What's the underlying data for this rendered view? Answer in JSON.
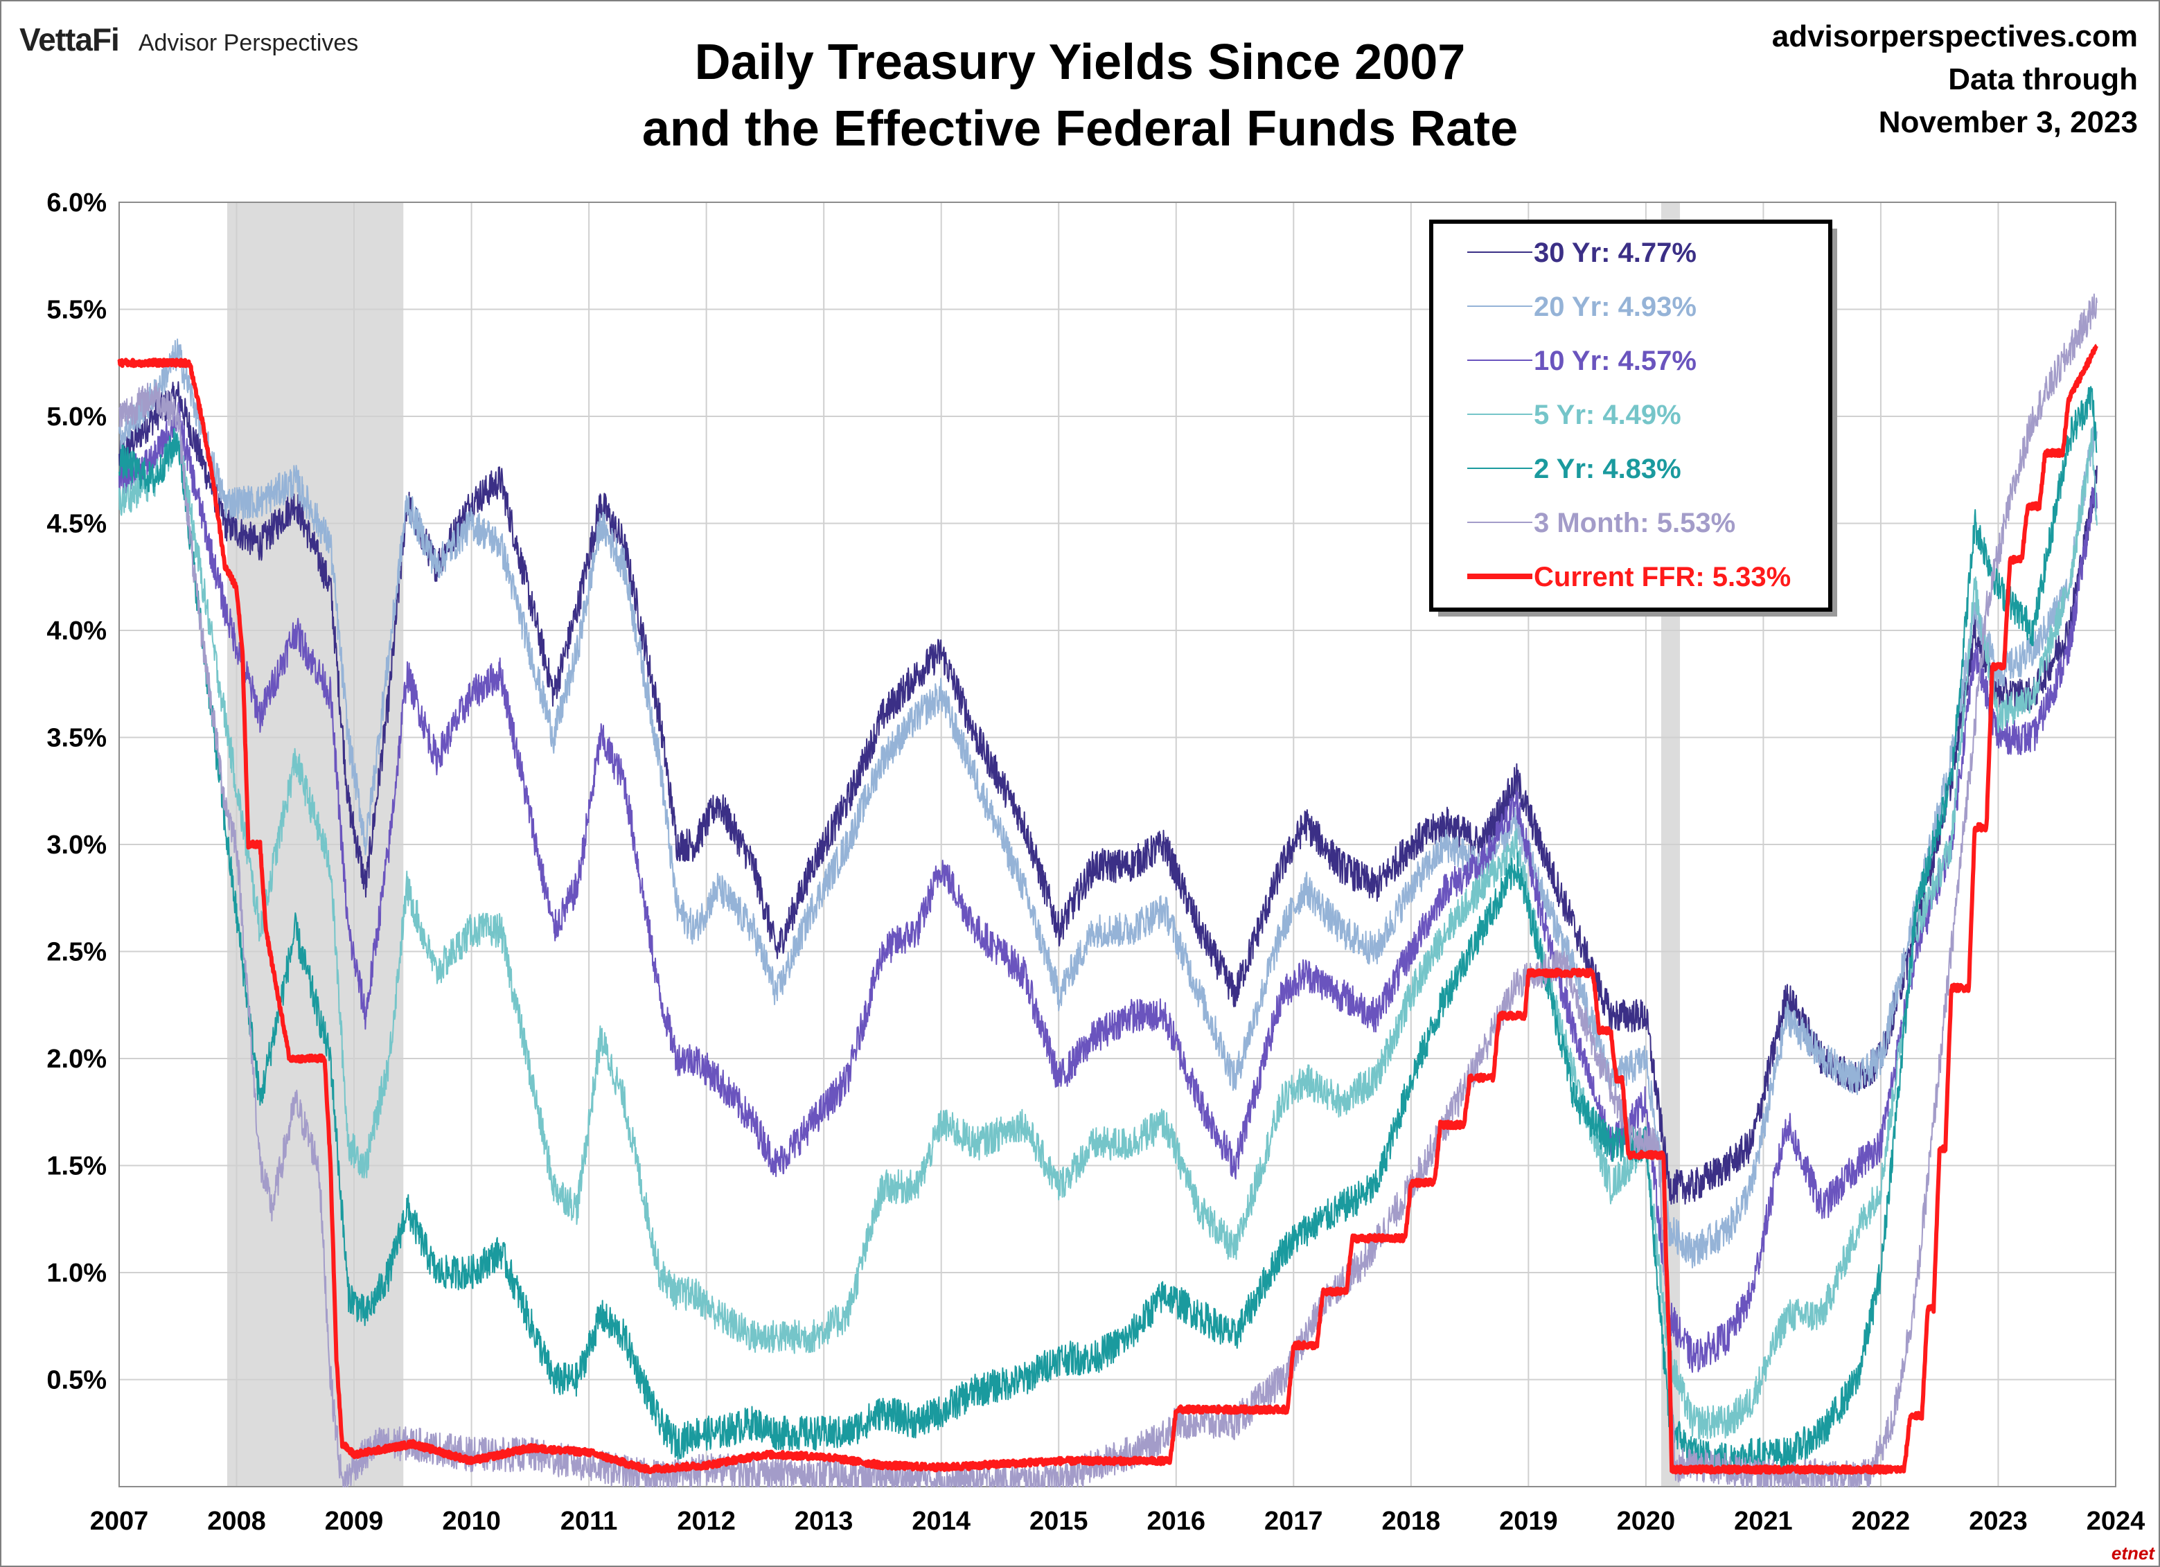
{
  "header": {
    "brand": "VettaFi",
    "sub_brand": "Advisor Perspectives",
    "title_line1": "Daily Treasury Yields Since 2007",
    "title_line2": "and the Effective Federal Funds Rate",
    "source_url": "advisorperspectives.com",
    "data_through_label": "Data through",
    "data_through_date": "November 3, 2023"
  },
  "watermark": "etnet",
  "chart_data": {
    "type": "line",
    "title": "Daily Treasury Yields Since 2007 and the Effective Federal Funds Rate",
    "xlabel": "",
    "ylabel": "",
    "xlim": [
      2007,
      2024
    ],
    "ylim": [
      0,
      6
    ],
    "x_ticks": [
      "2007",
      "2008",
      "2009",
      "2010",
      "2011",
      "2012",
      "2013",
      "2014",
      "2015",
      "2016",
      "2017",
      "2018",
      "2019",
      "2020",
      "2021",
      "2022",
      "2023",
      "2024"
    ],
    "y_ticks": [
      "0.5%",
      "1.0%",
      "1.5%",
      "2.0%",
      "2.5%",
      "3.0%",
      "3.5%",
      "4.0%",
      "4.5%",
      "5.0%",
      "5.5%",
      "6.0%"
    ],
    "grid": true,
    "legend_position": "top-right",
    "recessions": [
      [
        2007.92,
        2009.42
      ],
      [
        2020.13,
        2020.29
      ]
    ],
    "series": [
      {
        "name": "30 Yr",
        "legend": "30 Yr: 4.77%",
        "color": "#3b2f86",
        "width": 2,
        "x": [
          2007.0,
          2007.3,
          2007.5,
          2007.9,
          2008.2,
          2008.5,
          2008.8,
          2008.95,
          2009.1,
          2009.3,
          2009.45,
          2009.7,
          2010.0,
          2010.25,
          2010.7,
          2010.9,
          2011.1,
          2011.3,
          2011.6,
          2011.75,
          2011.9,
          2012.1,
          2012.4,
          2012.6,
          2012.9,
          2013.2,
          2013.5,
          2013.8,
          2014.0,
          2014.3,
          2014.7,
          2015.0,
          2015.3,
          2015.6,
          2015.9,
          2016.2,
          2016.5,
          2016.9,
          2017.1,
          2017.4,
          2017.7,
          2018.0,
          2018.3,
          2018.6,
          2018.9,
          2019.1,
          2019.4,
          2019.7,
          2020.0,
          2020.2,
          2020.4,
          2020.7,
          2020.9,
          2021.2,
          2021.5,
          2021.8,
          2022.0,
          2022.3,
          2022.6,
          2022.8,
          2023.0,
          2023.3,
          2023.6,
          2023.8,
          2023.84
        ],
        "y": [
          4.8,
          5.0,
          5.1,
          4.5,
          4.4,
          4.6,
          4.2,
          3.2,
          2.8,
          3.7,
          4.6,
          4.3,
          4.6,
          4.7,
          3.7,
          4.1,
          4.6,
          4.4,
          3.6,
          3.0,
          3.0,
          3.2,
          2.9,
          2.5,
          2.9,
          3.2,
          3.6,
          3.8,
          3.9,
          3.5,
          3.1,
          2.6,
          2.9,
          2.9,
          3.0,
          2.6,
          2.3,
          2.9,
          3.1,
          2.9,
          2.8,
          3.0,
          3.1,
          3.0,
          3.3,
          3.0,
          2.6,
          2.2,
          2.2,
          1.4,
          1.4,
          1.5,
          1.6,
          2.3,
          2.0,
          1.9,
          2.0,
          2.6,
          3.3,
          4.0,
          3.7,
          3.7,
          4.0,
          4.6,
          4.77
        ]
      },
      {
        "name": "20 Yr",
        "legend": "20 Yr: 4.93%",
        "color": "#95b3d7",
        "width": 2,
        "x": [
          2007.0,
          2007.3,
          2007.5,
          2007.9,
          2008.2,
          2008.5,
          2008.8,
          2008.95,
          2009.1,
          2009.3,
          2009.45,
          2009.7,
          2010.0,
          2010.25,
          2010.7,
          2010.9,
          2011.1,
          2011.3,
          2011.6,
          2011.75,
          2011.9,
          2012.1,
          2012.4,
          2012.6,
          2012.9,
          2013.2,
          2013.5,
          2013.8,
          2014.0,
          2014.3,
          2014.7,
          2015.0,
          2015.3,
          2015.6,
          2015.9,
          2016.2,
          2016.5,
          2016.9,
          2017.1,
          2017.4,
          2017.7,
          2018.0,
          2018.3,
          2018.6,
          2018.9,
          2019.1,
          2019.4,
          2019.7,
          2020.0,
          2020.2,
          2020.4,
          2020.7,
          2020.9,
          2021.2,
          2021.5,
          2021.8,
          2022.0,
          2022.3,
          2022.6,
          2022.8,
          2023.0,
          2023.3,
          2023.6,
          2023.8,
          2023.84
        ],
        "y": [
          4.9,
          5.1,
          5.3,
          4.6,
          4.6,
          4.7,
          4.4,
          3.5,
          3.0,
          3.9,
          4.6,
          4.3,
          4.5,
          4.4,
          3.5,
          3.9,
          4.5,
          4.3,
          3.4,
          2.7,
          2.6,
          2.8,
          2.6,
          2.3,
          2.7,
          3.0,
          3.4,
          3.6,
          3.7,
          3.3,
          2.8,
          2.3,
          2.6,
          2.6,
          2.7,
          2.3,
          1.9,
          2.6,
          2.8,
          2.6,
          2.5,
          2.8,
          3.0,
          2.9,
          3.1,
          2.8,
          2.4,
          1.9,
          2.0,
          1.2,
          1.1,
          1.2,
          1.4,
          2.2,
          2.0,
          1.9,
          2.0,
          2.7,
          3.4,
          4.1,
          3.8,
          3.9,
          4.2,
          4.9,
          4.93
        ]
      },
      {
        "name": "10 Yr",
        "legend": "10 Yr: 4.57%",
        "color": "#6a54be",
        "width": 2,
        "x": [
          2007.0,
          2007.3,
          2007.5,
          2007.9,
          2008.2,
          2008.5,
          2008.8,
          2008.95,
          2009.1,
          2009.3,
          2009.45,
          2009.7,
          2010.0,
          2010.25,
          2010.7,
          2010.9,
          2011.1,
          2011.3,
          2011.6,
          2011.75,
          2011.9,
          2012.1,
          2012.4,
          2012.6,
          2012.9,
          2013.2,
          2013.5,
          2013.8,
          2014.0,
          2014.3,
          2014.7,
          2015.0,
          2015.3,
          2015.6,
          2015.9,
          2016.2,
          2016.5,
          2016.9,
          2017.1,
          2017.4,
          2017.7,
          2018.0,
          2018.3,
          2018.6,
          2018.9,
          2019.1,
          2019.4,
          2019.7,
          2020.0,
          2020.2,
          2020.4,
          2020.7,
          2020.9,
          2021.2,
          2021.5,
          2021.8,
          2022.0,
          2022.3,
          2022.6,
          2022.8,
          2023.0,
          2023.3,
          2023.6,
          2023.8,
          2023.84
        ],
        "y": [
          4.7,
          4.8,
          5.0,
          4.1,
          3.6,
          4.0,
          3.7,
          2.6,
          2.2,
          3.0,
          3.8,
          3.4,
          3.7,
          3.8,
          2.6,
          2.8,
          3.5,
          3.3,
          2.3,
          2.0,
          2.0,
          1.9,
          1.7,
          1.5,
          1.7,
          1.9,
          2.5,
          2.6,
          2.9,
          2.6,
          2.4,
          1.9,
          2.1,
          2.2,
          2.2,
          1.8,
          1.5,
          2.3,
          2.4,
          2.3,
          2.2,
          2.5,
          2.8,
          2.9,
          3.2,
          2.7,
          2.1,
          1.6,
          1.8,
          0.8,
          0.6,
          0.7,
          0.9,
          1.7,
          1.3,
          1.5,
          1.6,
          2.5,
          3.0,
          3.9,
          3.5,
          3.5,
          3.9,
          4.6,
          4.57
        ]
      },
      {
        "name": "5 Yr",
        "legend": "5 Yr: 4.49%",
        "color": "#75c5c9",
        "width": 2,
        "x": [
          2007.0,
          2007.3,
          2007.5,
          2007.9,
          2008.2,
          2008.5,
          2008.8,
          2008.95,
          2009.1,
          2009.3,
          2009.45,
          2009.7,
          2010.0,
          2010.25,
          2010.7,
          2010.9,
          2011.1,
          2011.3,
          2011.6,
          2011.75,
          2011.9,
          2012.1,
          2012.4,
          2012.6,
          2012.9,
          2013.2,
          2013.5,
          2013.8,
          2014.0,
          2014.3,
          2014.7,
          2015.0,
          2015.3,
          2015.6,
          2015.9,
          2016.2,
          2016.5,
          2016.9,
          2017.1,
          2017.4,
          2017.7,
          2018.0,
          2018.3,
          2018.6,
          2018.9,
          2019.1,
          2019.4,
          2019.7,
          2020.0,
          2020.2,
          2020.4,
          2020.7,
          2020.9,
          2021.2,
          2021.5,
          2021.8,
          2022.0,
          2022.3,
          2022.6,
          2022.8,
          2023.0,
          2023.3,
          2023.6,
          2023.8,
          2023.84
        ],
        "y": [
          4.6,
          4.7,
          4.9,
          3.6,
          2.6,
          3.4,
          2.9,
          1.6,
          1.5,
          2.0,
          2.8,
          2.4,
          2.6,
          2.6,
          1.4,
          1.3,
          2.1,
          1.8,
          1.0,
          0.9,
          0.9,
          0.8,
          0.7,
          0.7,
          0.7,
          0.8,
          1.4,
          1.4,
          1.7,
          1.6,
          1.7,
          1.4,
          1.6,
          1.6,
          1.7,
          1.3,
          1.1,
          1.8,
          1.9,
          1.8,
          1.9,
          2.3,
          2.6,
          2.8,
          3.0,
          2.5,
          1.9,
          1.4,
          1.6,
          0.6,
          0.3,
          0.3,
          0.4,
          0.8,
          0.8,
          1.2,
          1.4,
          2.6,
          3.0,
          4.2,
          3.6,
          3.7,
          4.2,
          4.9,
          4.49
        ]
      },
      {
        "name": "2 Yr",
        "legend": "2 Yr: 4.83%",
        "color": "#1a9a9e",
        "width": 2,
        "x": [
          2007.0,
          2007.3,
          2007.5,
          2007.9,
          2008.2,
          2008.5,
          2008.8,
          2008.95,
          2009.1,
          2009.3,
          2009.45,
          2009.7,
          2010.0,
          2010.25,
          2010.7,
          2010.9,
          2011.1,
          2011.3,
          2011.6,
          2011.75,
          2011.9,
          2012.1,
          2012.4,
          2012.6,
          2012.9,
          2013.2,
          2013.5,
          2013.8,
          2014.0,
          2014.3,
          2014.7,
          2015.0,
          2015.3,
          2015.6,
          2015.9,
          2016.2,
          2016.5,
          2016.9,
          2017.1,
          2017.4,
          2017.7,
          2018.0,
          2018.3,
          2018.6,
          2018.9,
          2019.1,
          2019.4,
          2019.7,
          2020.0,
          2020.2,
          2020.4,
          2020.7,
          2020.9,
          2021.2,
          2021.5,
          2021.8,
          2022.0,
          2022.3,
          2022.6,
          2022.8,
          2023.0,
          2023.3,
          2023.6,
          2023.8,
          2023.84
        ],
        "y": [
          4.8,
          4.7,
          4.9,
          3.1,
          1.8,
          2.6,
          2.0,
          0.9,
          0.8,
          1.0,
          1.3,
          1.0,
          1.0,
          1.1,
          0.5,
          0.5,
          0.8,
          0.7,
          0.3,
          0.2,
          0.25,
          0.25,
          0.3,
          0.25,
          0.25,
          0.25,
          0.35,
          0.3,
          0.35,
          0.45,
          0.5,
          0.6,
          0.6,
          0.7,
          0.9,
          0.8,
          0.7,
          1.1,
          1.2,
          1.3,
          1.4,
          1.9,
          2.3,
          2.6,
          2.9,
          2.5,
          1.8,
          1.6,
          1.6,
          0.3,
          0.15,
          0.13,
          0.15,
          0.15,
          0.25,
          0.5,
          1.0,
          2.7,
          3.3,
          4.5,
          4.2,
          4.0,
          4.9,
          5.1,
          4.83
        ]
      },
      {
        "name": "3 Month",
        "legend": "3 Month: 5.53%",
        "color": "#a39cc9",
        "width": 2,
        "x": [
          2007.0,
          2007.3,
          2007.5,
          2007.65,
          2007.9,
          2008.0,
          2008.2,
          2008.3,
          2008.5,
          2008.7,
          2008.8,
          2008.9,
          2009.0,
          2009.2,
          2009.5,
          2010.0,
          2010.5,
          2011.0,
          2011.5,
          2011.7,
          2012.0,
          2013.0,
          2014.0,
          2015.0,
          2015.8,
          2016.0,
          2016.5,
          2016.9,
          2017.3,
          2017.6,
          2018.0,
          2018.4,
          2018.9,
          2019.3,
          2019.6,
          2019.9,
          2020.1,
          2020.25,
          2020.4,
          2021.0,
          2021.9,
          2022.1,
          2022.3,
          2022.6,
          2022.9,
          2023.1,
          2023.3,
          2023.6,
          2023.84
        ],
        "y": [
          5.0,
          5.1,
          5.0,
          4.2,
          3.2,
          3.0,
          1.5,
          1.3,
          1.8,
          1.5,
          0.5,
          0.0,
          0.1,
          0.2,
          0.2,
          0.15,
          0.15,
          0.1,
          0.05,
          0.05,
          0.08,
          0.05,
          0.03,
          0.03,
          0.2,
          0.3,
          0.3,
          0.5,
          0.9,
          1.05,
          1.4,
          1.8,
          2.35,
          2.45,
          2.0,
          1.6,
          1.6,
          0.1,
          0.1,
          0.05,
          0.05,
          0.3,
          0.9,
          2.5,
          4.1,
          4.6,
          5.0,
          5.3,
          5.53
        ]
      }
    ],
    "ffr": {
      "name": "Current FFR",
      "legend": "Current FFR: 5.33%",
      "color": "#ff1a1a",
      "width": 6,
      "x": [
        2007.0,
        2007.6,
        2007.7,
        2007.8,
        2007.9,
        2008.0,
        2008.05,
        2008.1,
        2008.2,
        2008.25,
        2008.35,
        2008.45,
        2008.75,
        2008.8,
        2008.85,
        2008.9,
        2009.0,
        2009.5,
        2010.0,
        2010.5,
        2011.0,
        2011.5,
        2012.0,
        2012.5,
        2013.0,
        2013.5,
        2014.0,
        2015.0,
        2015.95,
        2016.0,
        2016.95,
        2017.0,
        2017.2,
        2017.25,
        2017.45,
        2017.5,
        2017.95,
        2018.0,
        2018.2,
        2018.25,
        2018.45,
        2018.5,
        2018.7,
        2018.75,
        2018.97,
        2019.0,
        2019.55,
        2019.6,
        2019.7,
        2019.75,
        2019.8,
        2019.85,
        2020.15,
        2020.17,
        2020.2,
        2020.22,
        2020.5,
        2021.0,
        2021.5,
        2022.0,
        2022.2,
        2022.25,
        2022.35,
        2022.4,
        2022.45,
        2022.5,
        2022.55,
        2022.6,
        2022.75,
        2022.8,
        2022.9,
        2022.95,
        2023.05,
        2023.1,
        2023.2,
        2023.25,
        2023.35,
        2023.4,
        2023.55,
        2023.6,
        2023.84
      ],
      "y": [
        5.25,
        5.25,
        5.0,
        4.7,
        4.3,
        4.2,
        3.9,
        3.0,
        3.0,
        2.6,
        2.3,
        2.0,
        2.0,
        1.5,
        0.6,
        0.2,
        0.15,
        0.2,
        0.12,
        0.18,
        0.16,
        0.08,
        0.1,
        0.15,
        0.14,
        0.1,
        0.09,
        0.12,
        0.12,
        0.36,
        0.36,
        0.66,
        0.66,
        0.91,
        0.91,
        1.16,
        1.16,
        1.42,
        1.42,
        1.69,
        1.69,
        1.91,
        1.91,
        2.2,
        2.2,
        2.4,
        2.4,
        2.13,
        2.13,
        1.9,
        1.9,
        1.55,
        1.55,
        1.1,
        0.65,
        0.08,
        0.08,
        0.08,
        0.08,
        0.08,
        0.08,
        0.33,
        0.33,
        0.83,
        0.83,
        1.58,
        1.58,
        2.33,
        2.33,
        3.08,
        3.08,
        3.83,
        3.83,
        4.33,
        4.33,
        4.58,
        4.58,
        4.83,
        4.83,
        5.08,
        5.33
      ]
    }
  }
}
